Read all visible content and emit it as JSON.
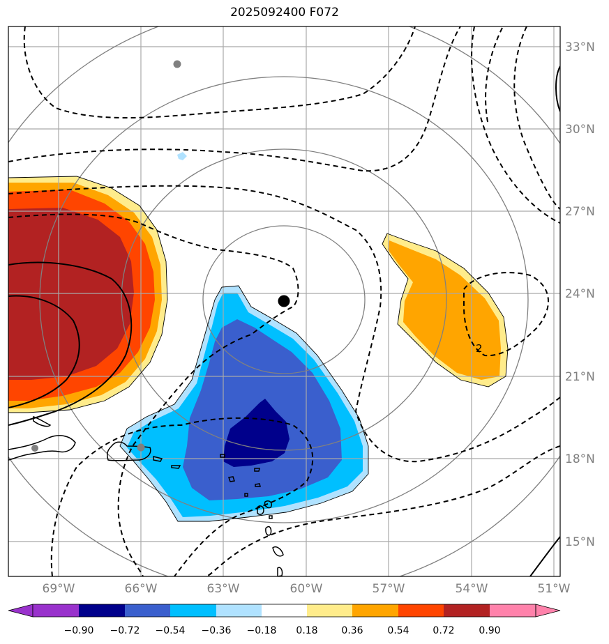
{
  "title": "2025092400 F072",
  "lat_labels": [
    "33°N",
    "30°N",
    "27°N",
    "24°N",
    "21°N",
    "18°N",
    "15°N"
  ],
  "lon_labels": [
    "69°W",
    "66°W",
    "63°W",
    "60°W",
    "57°W",
    "54°W",
    "51°W"
  ],
  "colorbar": {
    "ticks": [
      "−0.90",
      "−0.72",
      "−0.54",
      "−0.36",
      "−0.18",
      "0.18",
      "0.36",
      "0.54",
      "0.72",
      "0.90"
    ],
    "colors": [
      "#9932cc",
      "#00008b",
      "#3a5fcd",
      "#00bfff",
      "#b0e2ff",
      "#ffffff",
      "#ffec8b",
      "#ffa500",
      "#ff4500",
      "#b22222",
      "#ff82ab"
    ]
  },
  "colors": {
    "grid": "#a9a9a9",
    "range_rings": "#808080",
    "contours": "#000000",
    "coastline": "#000000",
    "storm_center": "#000000",
    "station_dots": "#808080"
  },
  "contour_label": "2"
}
